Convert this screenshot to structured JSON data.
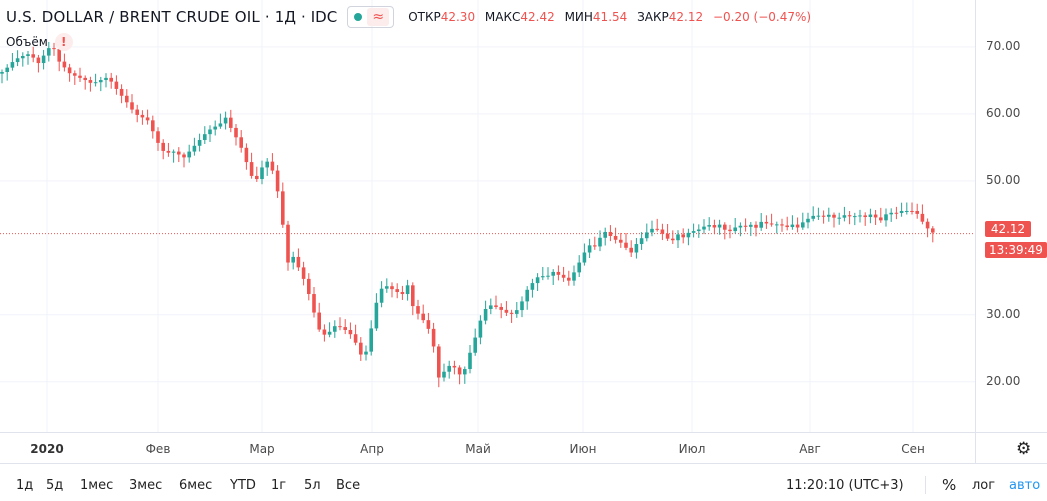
{
  "header": {
    "symbol": "U.S. DOLLAR / BRENT CRUDE OIL",
    "interval": "1Д",
    "source": "IDC",
    "wave_symbol": "≈",
    "ohlc": [
      {
        "label": "ОТКР",
        "value": "42.30"
      },
      {
        "label": "МАКС",
        "value": "42.42"
      },
      {
        "label": "МИН",
        "value": "41.54"
      },
      {
        "label": "ЗАКР",
        "value": "42.12"
      }
    ],
    "change": "−0.20 (−0.47%)"
  },
  "volume": {
    "label": "Объём",
    "alert": "!"
  },
  "price_axis": {
    "ticks": [
      "70.00",
      "60.00",
      "50.00",
      "30.00",
      "20.00"
    ]
  },
  "badges": {
    "last_price": "42.12",
    "countdown": "13:39:49"
  },
  "time_axis": {
    "ticks": [
      {
        "label": "2020",
        "bold": true
      },
      {
        "label": "Фев"
      },
      {
        "label": "Мар"
      },
      {
        "label": "Апр"
      },
      {
        "label": "Май"
      },
      {
        "label": "Июн"
      },
      {
        "label": "Июл"
      },
      {
        "label": "Авг"
      },
      {
        "label": "Сен"
      }
    ]
  },
  "bottom_bar": {
    "ranges": [
      "1д",
      "5д",
      "1мес",
      "3мес",
      "6мес",
      "YTD",
      "1г",
      "5л",
      "Все"
    ],
    "clock": "11:20:10 (UTC+3)",
    "percent": "%",
    "log": "лог",
    "auto": "авто"
  },
  "colors": {
    "up": "#26a69a",
    "down": "#ef5350",
    "grid": "#f0f3fa",
    "accent": "#2196f3"
  },
  "chart_data": {
    "type": "candlestick",
    "ylim": [
      12.5,
      77
    ],
    "y_ticks": [
      70,
      60,
      50,
      30,
      20
    ],
    "last_price": 42.12,
    "x_categories": [
      "2020",
      "Фев",
      "Мар",
      "Апр",
      "Май",
      "Июн",
      "Июл",
      "Авг",
      "Сен"
    ],
    "close_path": [
      [
        0,
        66
      ],
      [
        8,
        67
      ],
      [
        14,
        68
      ],
      [
        20,
        68.5
      ],
      [
        30,
        69
      ],
      [
        38,
        67.5
      ],
      [
        45,
        69
      ],
      [
        52,
        70.5
      ],
      [
        58,
        68
      ],
      [
        64,
        67
      ],
      [
        70,
        66
      ],
      [
        78,
        65.5
      ],
      [
        86,
        65
      ],
      [
        92,
        64.5
      ],
      [
        100,
        65
      ],
      [
        108,
        65.5
      ],
      [
        115,
        64
      ],
      [
        120,
        63
      ],
      [
        128,
        61.5
      ],
      [
        135,
        60
      ],
      [
        142,
        59.5
      ],
      [
        148,
        59
      ],
      [
        154,
        57
      ],
      [
        160,
        55
      ],
      [
        166,
        54
      ],
      [
        172,
        54.5
      ],
      [
        178,
        54
      ],
      [
        184,
        53.5
      ],
      [
        190,
        54.5
      ],
      [
        196,
        55.5
      ],
      [
        202,
        56.5
      ],
      [
        208,
        57.5
      ],
      [
        214,
        58
      ],
      [
        220,
        58.5
      ],
      [
        226,
        59.5
      ],
      [
        232,
        57.5
      ],
      [
        238,
        56
      ],
      [
        244,
        54
      ],
      [
        250,
        51
      ],
      [
        256,
        50
      ],
      [
        262,
        52
      ],
      [
        268,
        53
      ],
      [
        274,
        51
      ],
      [
        281,
        46
      ],
      [
        287,
        37.5
      ],
      [
        292,
        39
      ],
      [
        297,
        37.5
      ],
      [
        302,
        36
      ],
      [
        307,
        34
      ],
      [
        312,
        31.5
      ],
      [
        318,
        28
      ],
      [
        324,
        27
      ],
      [
        330,
        27.5
      ],
      [
        336,
        28.5
      ],
      [
        342,
        28
      ],
      [
        348,
        27.5
      ],
      [
        354,
        26.5
      ],
      [
        360,
        24
      ],
      [
        366,
        24.5
      ],
      [
        372,
        28.5
      ],
      [
        378,
        33
      ],
      [
        384,
        34.5
      ],
      [
        390,
        34
      ],
      [
        396,
        33.5
      ],
      [
        402,
        33
      ],
      [
        408,
        34.5
      ],
      [
        414,
        30.5
      ],
      [
        420,
        30
      ],
      [
        426,
        28.5
      ],
      [
        432,
        27
      ],
      [
        438,
        20.5
      ],
      [
        444,
        21.5
      ],
      [
        450,
        22.5
      ],
      [
        456,
        22
      ],
      [
        462,
        20.5
      ],
      [
        468,
        23.5
      ],
      [
        474,
        26
      ],
      [
        480,
        29
      ],
      [
        486,
        31
      ],
      [
        492,
        31.5
      ],
      [
        498,
        31
      ],
      [
        504,
        30.5
      ],
      [
        510,
        30
      ],
      [
        516,
        30.5
      ],
      [
        522,
        32
      ],
      [
        528,
        34
      ],
      [
        534,
        35
      ],
      [
        540,
        36
      ],
      [
        546,
        35.5
      ],
      [
        552,
        36.5
      ],
      [
        558,
        36
      ],
      [
        564,
        35.5
      ],
      [
        570,
        35
      ],
      [
        576,
        37
      ],
      [
        582,
        38.5
      ],
      [
        588,
        40.5
      ],
      [
        594,
        40
      ],
      [
        600,
        41.5
      ],
      [
        606,
        42.5
      ],
      [
        612,
        41.5
      ],
      [
        618,
        41
      ],
      [
        624,
        40.5
      ],
      [
        630,
        39
      ],
      [
        636,
        40.5
      ],
      [
        642,
        41.5
      ],
      [
        648,
        42.5
      ],
      [
        654,
        43
      ],
      [
        660,
        42.5
      ],
      [
        666,
        41.5
      ],
      [
        672,
        41
      ],
      [
        678,
        42
      ],
      [
        684,
        41.5
      ],
      [
        690,
        42.5
      ],
      [
        696,
        42.5
      ],
      [
        702,
        43
      ],
      [
        708,
        43.5
      ],
      [
        714,
        43
      ],
      [
        720,
        43.5
      ],
      [
        726,
        42.5
      ],
      [
        732,
        42.5
      ],
      [
        738,
        43.5
      ],
      [
        744,
        43
      ],
      [
        750,
        43.5
      ],
      [
        756,
        43
      ],
      [
        762,
        44
      ],
      [
        768,
        43.5
      ],
      [
        774,
        43.5
      ],
      [
        780,
        43.5
      ],
      [
        786,
        43
      ],
      [
        792,
        43.5
      ],
      [
        798,
        43
      ],
      [
        804,
        44
      ],
      [
        810,
        44.5
      ],
      [
        816,
        45
      ],
      [
        822,
        44.5
      ],
      [
        828,
        45
      ],
      [
        834,
        44.5
      ],
      [
        840,
        44.5
      ],
      [
        846,
        45
      ],
      [
        852,
        44.5
      ],
      [
        858,
        45
      ],
      [
        864,
        44.5
      ],
      [
        870,
        45
      ],
      [
        876,
        44.5
      ],
      [
        882,
        44
      ],
      [
        888,
        45.5
      ],
      [
        894,
        45
      ],
      [
        900,
        45.5
      ],
      [
        906,
        45.5
      ],
      [
        912,
        45.5
      ],
      [
        918,
        45
      ],
      [
        924,
        43.5
      ],
      [
        930,
        42.5
      ],
      [
        935,
        42.1
      ]
    ]
  }
}
